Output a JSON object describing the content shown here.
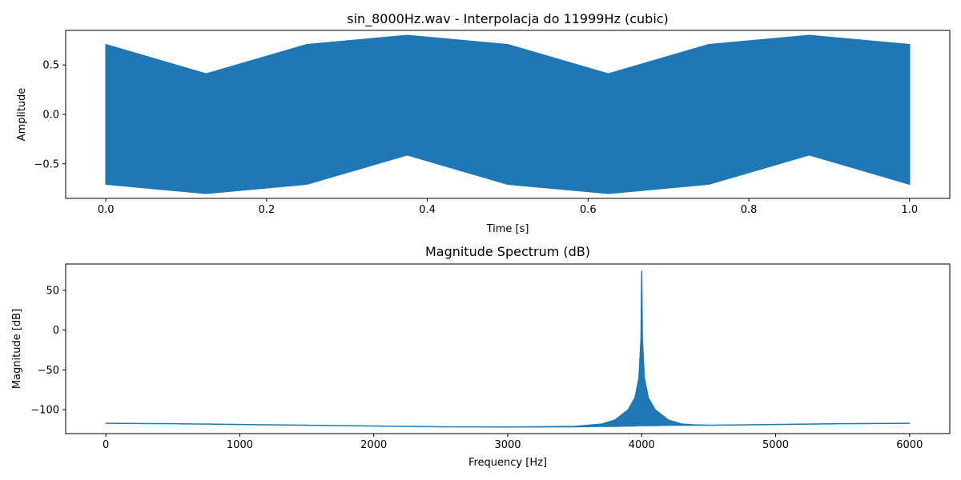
{
  "colors": {
    "series": "#1f77b4",
    "axes": "#000000",
    "background": "#ffffff"
  },
  "chart_data": [
    {
      "type": "line",
      "title": "sin_8000Hz.wav - Interpolacja do 11999Hz (cubic)",
      "xlabel": "Time [s]",
      "ylabel": "Amplitude",
      "xlim": [
        -0.05,
        1.05
      ],
      "ylim": [
        -0.85,
        0.85
      ],
      "xticks": [
        0.0,
        0.2,
        0.4,
        0.6,
        0.8,
        1.0
      ],
      "xtick_labels": [
        "0.0",
        "0.2",
        "0.4",
        "0.6",
        "0.8",
        "1.0"
      ],
      "yticks": [
        -0.5,
        0.0,
        0.5
      ],
      "ytick_labels": [
        "−0.5",
        "0.0",
        "0.5"
      ],
      "grid": false,
      "legend": "none",
      "series": [
        {
          "x": [
            0.0,
            0.125,
            0.25,
            0.375,
            0.5,
            0.625,
            0.75,
            0.875,
            1.0
          ],
          "upper_envelope": [
            0.707,
            0.41,
            0.707,
            0.8,
            0.707,
            0.41,
            0.707,
            0.8,
            0.707
          ],
          "lower_envelope": [
            -0.707,
            -0.8,
            -0.707,
            -0.41,
            -0.707,
            -0.8,
            -0.707,
            -0.41,
            -0.707
          ]
        }
      ]
    },
    {
      "type": "line",
      "title": "Magnitude Spectrum (dB)",
      "xlabel": "Frequency [Hz]",
      "ylabel": "Magnitude [dB]",
      "xlim": [
        -300,
        6300
      ],
      "ylim": [
        -130,
        83
      ],
      "xticks": [
        0,
        1000,
        2000,
        3000,
        4000,
        5000,
        6000
      ],
      "xtick_labels": [
        "0",
        "1000",
        "2000",
        "3000",
        "4000",
        "5000",
        "6000"
      ],
      "yticks": [
        -100,
        -50,
        0,
        50
      ],
      "ytick_labels": [
        "−100",
        "−50",
        "0",
        "50"
      ],
      "grid": false,
      "legend": "none",
      "series": [
        {
          "x": [
            0,
            500,
            1000,
            1500,
            2000,
            2500,
            3000,
            3500,
            3700,
            3800,
            3900,
            3950,
            3980,
            3995,
            4000,
            4005,
            4020,
            4050,
            4100,
            4200,
            4300,
            4400,
            4500,
            5000,
            5500,
            6000
          ],
          "upper": [
            -117,
            -117.5,
            -118.5,
            -119.5,
            -120.5,
            -121.5,
            -121.8,
            -121,
            -118,
            -113,
            -100,
            -85,
            -60,
            -10,
            74,
            -10,
            -60,
            -85,
            -100,
            -113,
            -118,
            -119,
            -119.5,
            -118.5,
            -117.5,
            -117
          ],
          "lower": [
            -117,
            -117.5,
            -118.5,
            -119.5,
            -120.5,
            -121.5,
            -121.8,
            -121.5,
            -121,
            -121,
            -120.5,
            -120.5,
            -120,
            -120,
            -120,
            -120,
            -120,
            -120,
            -120,
            -119.5,
            -119.5,
            -119.5,
            -119.5,
            -118.5,
            -117.5,
            -117
          ]
        }
      ]
    }
  ]
}
